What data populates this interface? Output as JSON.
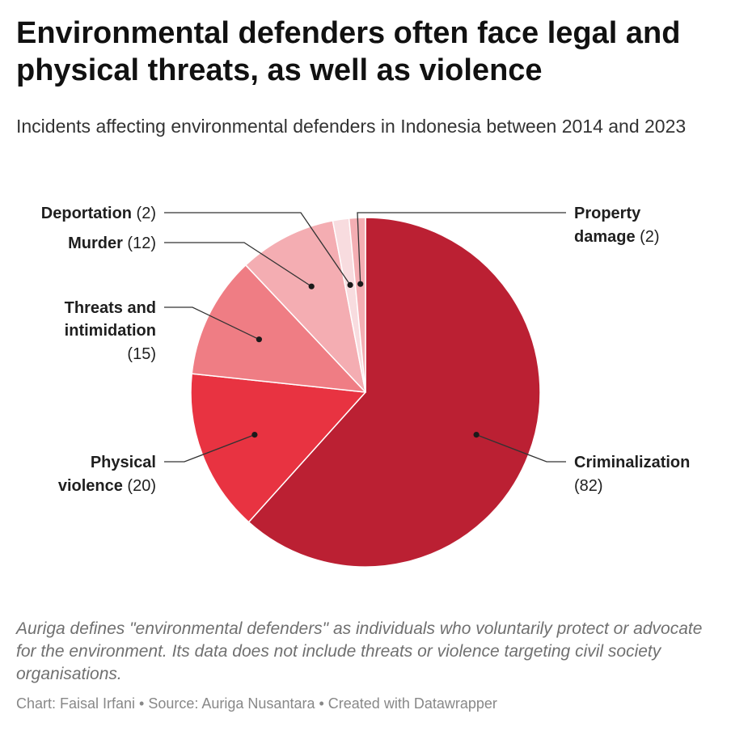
{
  "title": "Environmental defenders often face legal and physical threats, as well as violence",
  "subtitle": "Incidents affecting environmental defenders in Indonesia between 2014 and 2023",
  "note": "Auriga defines \"environmental defenders\" as individuals who voluntarily protect or advocate for the environment. Its data does not include threats or violence targeting civil society organisations.",
  "credits": "Chart: Faisal Irfani • Source: Auriga Nusantara • Created with Datawrapper",
  "chart_data": {
    "type": "pie",
    "slices": [
      {
        "label": "Criminalization",
        "value": 82,
        "color": "#bb2033"
      },
      {
        "label": "Physical violence",
        "value": 20,
        "color": "#e83341"
      },
      {
        "label": "Threats and intimidation",
        "value": 15,
        "color": "#ef7d84"
      },
      {
        "label": "Murder",
        "value": 12,
        "color": "#f4adb2"
      },
      {
        "label": "Deportation",
        "value": 2,
        "color": "#f8dcdf"
      },
      {
        "label": "Property damage",
        "value": 2,
        "color": "#f4aeb3"
      }
    ]
  }
}
